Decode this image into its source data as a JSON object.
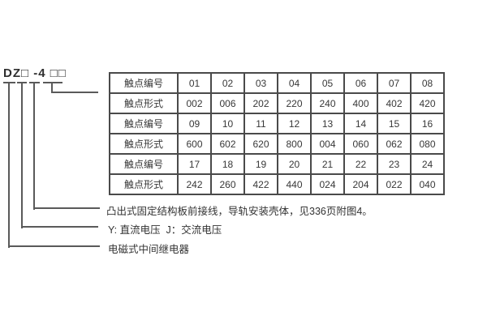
{
  "model": {
    "designation": "DZ□ -4 □□"
  },
  "table": {
    "rows": [
      {
        "label": "触点编号",
        "values": [
          "01",
          "02",
          "03",
          "04",
          "05",
          "06",
          "07",
          "08"
        ]
      },
      {
        "label": "触点形式",
        "values": [
          "002",
          "006",
          "202",
          "220",
          "240",
          "400",
          "402",
          "420"
        ]
      },
      {
        "label": "触点编号",
        "values": [
          "09",
          "10",
          "11",
          "12",
          "13",
          "14",
          "15",
          "16"
        ]
      },
      {
        "label": "触点形式",
        "values": [
          "600",
          "602",
          "620",
          "800",
          "004",
          "060",
          "062",
          "080"
        ]
      },
      {
        "label": "触点编号",
        "values": [
          "17",
          "18",
          "19",
          "20",
          "21",
          "22",
          "23",
          "24"
        ]
      },
      {
        "label": "触点形式",
        "values": [
          "242",
          "260",
          "422",
          "440",
          "024",
          "204",
          "022",
          "040"
        ]
      }
    ]
  },
  "annotations": {
    "mounting": "凸出式固定结构板前接线，导轨安装壳体，见336页附图4。",
    "voltage": "Y: 直流电压  J：交流电压",
    "relay_type": "电磁式中间继电器"
  },
  "colors": {
    "background": "#ffffff",
    "line": "#5a5a5a",
    "table_border": "#4a4a4a",
    "text": "#333333"
  }
}
